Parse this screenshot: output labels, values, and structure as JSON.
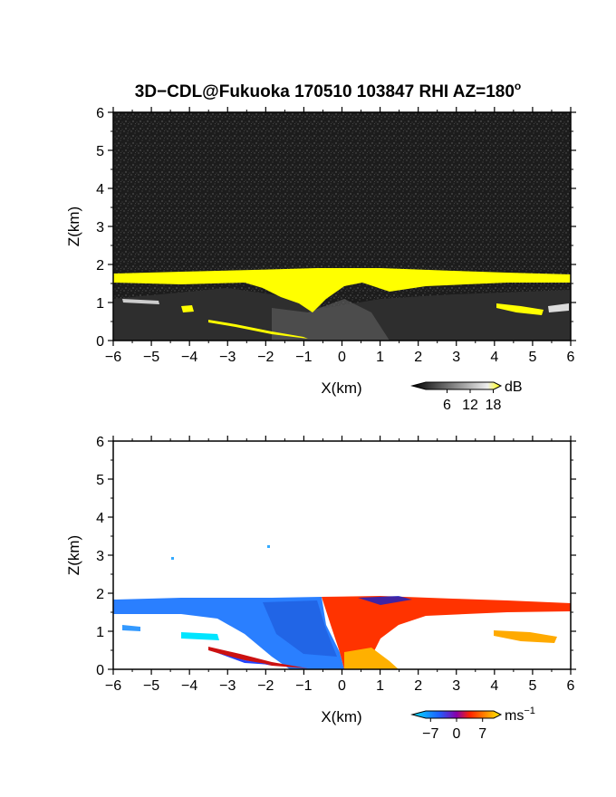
{
  "title": "3D−CDL@Fukuoka 170510 103847 RHI AZ=180",
  "title_superscript": "o",
  "colors": {
    "reflect_bg": "#1c1c1c",
    "reflect_highlight": "#ffff00",
    "velocity_blue": "#1e90ff",
    "velocity_red": "#ff3300",
    "velocity_orange": "#ffaa00",
    "velocity_cyan": "#00e5ff"
  },
  "chart_data": [
    {
      "type": "heatmap",
      "name": "reflectivity",
      "xlabel": "X(km)",
      "ylabel": "Z(km)",
      "xlim": [
        -6,
        6
      ],
      "ylim": [
        0,
        6
      ],
      "xticks": [
        "−6",
        "−5",
        "−4",
        "−3",
        "−2",
        "−1",
        "0",
        "1",
        "2",
        "3",
        "4",
        "5",
        "6"
      ],
      "yticks": [
        "0",
        "1",
        "2",
        "3",
        "4",
        "5",
        "6"
      ],
      "colorbar": {
        "unit": "dB",
        "ticks": [
          "6",
          "12",
          "18"
        ],
        "range": [
          0,
          20
        ]
      },
      "layer_top_km": 1.8,
      "layer_base_km": 1.4,
      "bright_band_regions": [
        {
          "x": [
            -6,
            6
          ],
          "z": [
            1.55,
            1.8
          ]
        },
        {
          "x": [
            -1.5,
            1.2
          ],
          "z": [
            0.7,
            1.8
          ]
        }
      ]
    },
    {
      "type": "heatmap",
      "name": "doppler_velocity",
      "xlabel": "X(km)",
      "ylabel": "Z(km)",
      "xlim": [
        -6,
        6
      ],
      "ylim": [
        0,
        6
      ],
      "xticks": [
        "−6",
        "−5",
        "−4",
        "−3",
        "−2",
        "−1",
        "0",
        "1",
        "2",
        "3",
        "4",
        "5",
        "6"
      ],
      "yticks": [
        "0",
        "1",
        "2",
        "3",
        "4",
        "5",
        "6"
      ],
      "colorbar": {
        "unit": "ms",
        "unit_superscript": "−1",
        "ticks": [
          "−7",
          "0",
          "7"
        ],
        "range": [
          -10,
          10
        ]
      },
      "regions": [
        {
          "sign": "negative",
          "x": [
            -6,
            0
          ],
          "z": [
            0,
            1.8
          ]
        },
        {
          "sign": "positive",
          "x": [
            0,
            6
          ],
          "z": [
            0,
            1.8
          ]
        }
      ]
    }
  ]
}
